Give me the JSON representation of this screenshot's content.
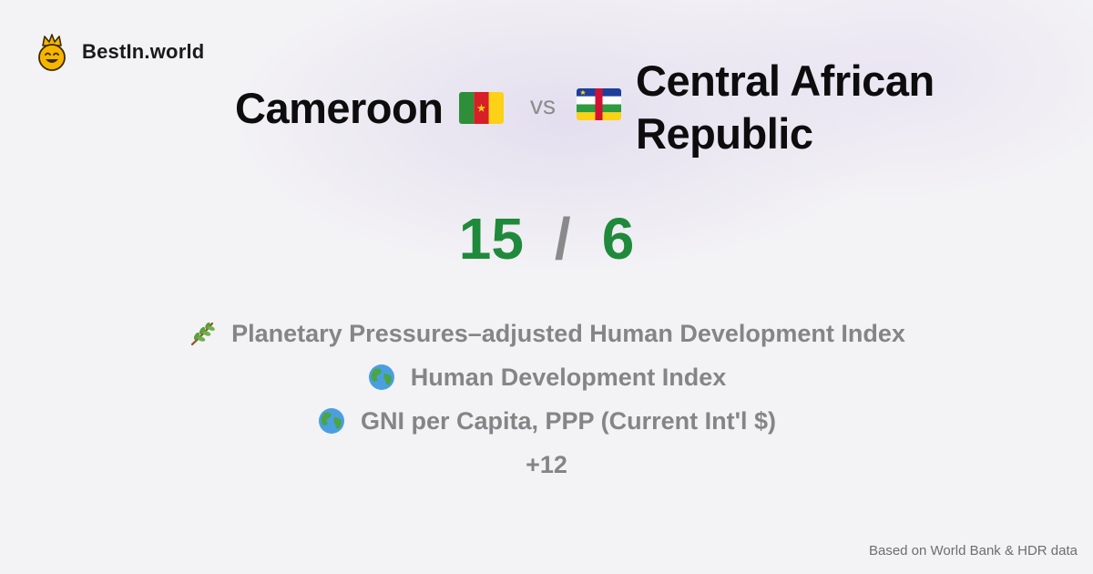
{
  "brand": {
    "name": "BestIn.world",
    "logo_icon": "crowned-smiley-icon"
  },
  "comparison": {
    "country_a": {
      "name": "Cameroon",
      "flag_icon": "cameroon-flag-icon"
    },
    "vs_label": "vs",
    "country_b": {
      "name": "Central African Republic",
      "flag_icon": "central-african-republic-flag-icon"
    }
  },
  "score": {
    "a": "15",
    "separator": "/",
    "b": "6",
    "color": "#1f8a3b"
  },
  "metrics": [
    {
      "label": "Planetary Pressures–adjusted Human Development Index",
      "icon": "plant-sprig-icon"
    },
    {
      "label": "Human Development Index",
      "icon": "globe-icon"
    },
    {
      "label": "GNI per Capita, PPP (Current Int'l $)",
      "icon": "globe-icon"
    }
  ],
  "more_label": "+12",
  "footer": {
    "source": "Based on World Bank & HDR data"
  }
}
